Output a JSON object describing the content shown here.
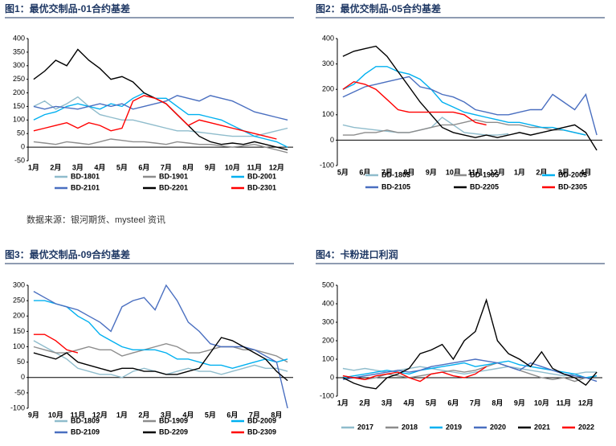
{
  "source": "数据来源：银河期货、mysteel 资讯",
  "chart_data": [
    {
      "type": "line",
      "title": "图1：最优交制品-01合约基差",
      "categories": [
        "1月",
        null,
        "2月",
        null,
        "3月",
        null,
        "4月",
        null,
        "5月",
        null,
        "6月",
        null,
        "7月",
        null,
        "8月",
        null,
        "9月",
        null,
        "10月",
        null,
        "11月",
        null,
        "12月",
        null
      ],
      "ylim": [
        -50,
        400
      ],
      "yticks": [
        -50,
        0,
        50,
        100,
        150,
        200,
        250,
        300,
        350,
        400
      ],
      "series": [
        {
          "name": "BD-1801",
          "color": "#8fbccc",
          "values": [
            150,
            170,
            140,
            160,
            185,
            150,
            120,
            110,
            100,
            100,
            90,
            80,
            70,
            60,
            60,
            55,
            50,
            45,
            40,
            40,
            40,
            50,
            60,
            70
          ]
        },
        {
          "name": "BD-1901",
          "color": "#8c8c8c",
          "values": [
            20,
            15,
            10,
            20,
            15,
            10,
            20,
            30,
            25,
            20,
            20,
            15,
            10,
            20,
            15,
            10,
            10,
            5,
            0,
            5,
            10,
            0,
            -10,
            -20
          ]
        },
        {
          "name": "BD-2001",
          "color": "#00b0f0",
          "values": [
            100,
            120,
            130,
            150,
            160,
            150,
            140,
            160,
            150,
            180,
            200,
            180,
            180,
            150,
            120,
            120,
            110,
            100,
            80,
            60,
            40,
            30,
            20,
            0
          ]
        },
        {
          "name": "BD-2101",
          "color": "#4a6fc0",
          "values": [
            150,
            140,
            150,
            145,
            140,
            150,
            160,
            150,
            160,
            140,
            150,
            160,
            170,
            190,
            180,
            170,
            190,
            180,
            170,
            150,
            130,
            120,
            110,
            100
          ]
        },
        {
          "name": "BD-2201",
          "color": "#000000",
          "values": [
            250,
            280,
            320,
            300,
            360,
            320,
            290,
            250,
            260,
            240,
            200,
            180,
            160,
            120,
            80,
            40,
            20,
            10,
            15,
            10,
            20,
            10,
            0,
            -10
          ]
        },
        {
          "name": "BD-2301",
          "color": "#ff0000",
          "values": [
            60,
            70,
            80,
            90,
            70,
            90,
            80,
            60,
            70,
            170,
            190,
            180,
            160,
            120,
            80,
            100,
            90,
            80,
            70,
            60,
            50,
            40,
            30,
            null
          ]
        }
      ]
    },
    {
      "type": "line",
      "title": "图2：最优交制品-05合约基差",
      "categories": [
        "5月",
        null,
        "6月",
        null,
        "7月",
        null,
        "8月",
        null,
        "9月",
        null,
        "10月",
        null,
        "11月",
        null,
        "12月",
        null,
        "1月",
        null,
        "2月",
        null,
        "3月",
        null,
        "4月",
        null
      ],
      "ylim": [
        -100,
        400
      ],
      "yticks": [
        -100,
        0,
        100,
        200,
        300,
        400
      ],
      "series": [
        {
          "name": "BD-1805",
          "color": "#8fbccc",
          "values": [
            60,
            50,
            45,
            40,
            35,
            30,
            30,
            40,
            50,
            90,
            60,
            30,
            25,
            20,
            20,
            25,
            null,
            null,
            null,
            null,
            null,
            null,
            null,
            null
          ]
        },
        {
          "name": "BD-1905",
          "color": "#8c8c8c",
          "values": [
            20,
            20,
            30,
            30,
            40,
            30,
            30,
            40,
            50,
            60,
            60,
            70,
            80,
            70,
            70,
            60,
            60,
            50,
            50,
            40,
            40,
            30,
            20,
            null
          ]
        },
        {
          "name": "BD-2005",
          "color": "#00b0f0",
          "values": [
            200,
            220,
            260,
            290,
            290,
            270,
            260,
            240,
            200,
            150,
            130,
            110,
            100,
            90,
            80,
            70,
            70,
            60,
            50,
            50,
            40,
            30,
            20,
            null
          ]
        },
        {
          "name": "BD-2105",
          "color": "#4a6fc0",
          "values": [
            170,
            190,
            210,
            220,
            230,
            240,
            250,
            210,
            200,
            180,
            170,
            150,
            120,
            110,
            100,
            100,
            110,
            120,
            120,
            180,
            150,
            120,
            180,
            20
          ]
        },
        {
          "name": "BD-2205",
          "color": "#000000",
          "values": [
            330,
            350,
            360,
            370,
            330,
            270,
            210,
            150,
            100,
            50,
            30,
            20,
            10,
            20,
            10,
            20,
            30,
            20,
            30,
            40,
            50,
            60,
            30,
            -40
          ]
        },
        {
          "name": "BD-2305",
          "color": "#ff0000",
          "values": [
            200,
            230,
            220,
            200,
            160,
            120,
            110,
            110,
            110,
            110,
            110,
            100,
            70,
            60,
            null,
            null,
            null,
            null,
            null,
            null,
            null,
            null,
            null,
            null
          ]
        }
      ]
    },
    {
      "type": "line",
      "title": "图3：最优交制品-09合约基差",
      "categories": [
        "9月",
        null,
        "10月",
        null,
        "11月",
        null,
        "12月",
        null,
        "1月",
        null,
        "2月",
        null,
        "3月",
        null,
        "4月",
        null,
        "5月",
        null,
        "6月",
        null,
        "7月",
        null,
        "8月",
        null
      ],
      "ylim": [
        -100,
        300
      ],
      "yticks": [
        -100,
        -50,
        0,
        50,
        100,
        150,
        200,
        250,
        300
      ],
      "series": [
        {
          "name": "BD-1809",
          "color": "#8fbccc",
          "values": [
            120,
            100,
            80,
            60,
            30,
            20,
            10,
            10,
            0,
            20,
            30,
            20,
            10,
            20,
            30,
            20,
            20,
            10,
            20,
            30,
            40,
            30,
            30,
            20
          ]
        },
        {
          "name": "BD-1909",
          "color": "#8c8c8c",
          "values": [
            100,
            90,
            80,
            80,
            90,
            100,
            90,
            90,
            70,
            80,
            90,
            100,
            110,
            100,
            80,
            80,
            90,
            100,
            100,
            90,
            90,
            80,
            70,
            50
          ]
        },
        {
          "name": "BD-2009",
          "color": "#00b0f0",
          "values": [
            250,
            250,
            240,
            230,
            200,
            180,
            140,
            120,
            100,
            90,
            90,
            90,
            80,
            60,
            60,
            50,
            40,
            40,
            30,
            40,
            50,
            60,
            50,
            60
          ]
        },
        {
          "name": "BD-2109",
          "color": "#4a6fc0",
          "values": [
            280,
            260,
            240,
            230,
            220,
            200,
            180,
            150,
            230,
            250,
            260,
            220,
            300,
            250,
            180,
            150,
            110,
            100,
            100,
            100,
            90,
            70,
            50,
            -100
          ]
        },
        {
          "name": "BD-2209",
          "color": "#000000",
          "values": [
            80,
            70,
            60,
            80,
            50,
            40,
            30,
            20,
            30,
            30,
            20,
            20,
            10,
            10,
            20,
            30,
            80,
            130,
            120,
            100,
            80,
            60,
            20,
            -10
          ]
        },
        {
          "name": "BD-2309",
          "color": "#ff0000",
          "values": [
            140,
            140,
            120,
            90,
            80,
            null,
            null,
            null,
            null,
            null,
            null,
            null,
            null,
            null,
            null,
            null,
            null,
            null,
            null,
            null,
            null,
            null,
            null,
            null
          ]
        }
      ]
    },
    {
      "type": "line",
      "title": "图4：卡粉进口利润",
      "categories": [
        "1月",
        null,
        "2月",
        null,
        "3月",
        null,
        "4月",
        null,
        "5月",
        null,
        "6月",
        null,
        "7月",
        null,
        "8月",
        null,
        "9月",
        null,
        "10月",
        null,
        "11月",
        null,
        "12月",
        null
      ],
      "ylim": [
        -100,
        500
      ],
      "yticks": [
        -100,
        0,
        100,
        200,
        300,
        400,
        500
      ],
      "series": [
        {
          "name": "2017",
          "color": "#8fbccc",
          "values": [
            50,
            40,
            50,
            40,
            30,
            40,
            50,
            60,
            50,
            40,
            30,
            20,
            30,
            40,
            50,
            60,
            50,
            40,
            30,
            20,
            10,
            20,
            30,
            30
          ]
        },
        {
          "name": "2018",
          "color": "#8c8c8c",
          "values": [
            10,
            0,
            -10,
            0,
            20,
            10,
            0,
            10,
            20,
            30,
            40,
            30,
            40,
            60,
            80,
            60,
            40,
            20,
            0,
            -10,
            0,
            -20,
            0,
            10
          ]
        },
        {
          "name": "2019",
          "color": "#00b0f0",
          "values": [
            0,
            10,
            20,
            30,
            40,
            30,
            20,
            40,
            50,
            60,
            70,
            80,
            60,
            70,
            80,
            90,
            70,
            60,
            50,
            40,
            30,
            20,
            0,
            10
          ]
        },
        {
          "name": "2020",
          "color": "#4a6fc0",
          "values": [
            -10,
            0,
            10,
            20,
            30,
            40,
            30,
            40,
            60,
            70,
            80,
            90,
            100,
            90,
            80,
            60,
            40,
            80,
            60,
            40,
            20,
            10,
            0,
            -20
          ]
        },
        {
          "name": "2021",
          "color": "#000000",
          "values": [
            0,
            -30,
            -50,
            -60,
            0,
            20,
            50,
            130,
            150,
            180,
            100,
            200,
            250,
            420,
            200,
            130,
            100,
            60,
            140,
            50,
            20,
            0,
            -40,
            30
          ]
        },
        {
          "name": "2022",
          "color": "#ff0000",
          "values": [
            10,
            0,
            -10,
            10,
            20,
            30,
            0,
            -20,
            20,
            30,
            10,
            0,
            20,
            60,
            null,
            null,
            null,
            null,
            null,
            null,
            null,
            null,
            null,
            null
          ]
        }
      ]
    }
  ]
}
